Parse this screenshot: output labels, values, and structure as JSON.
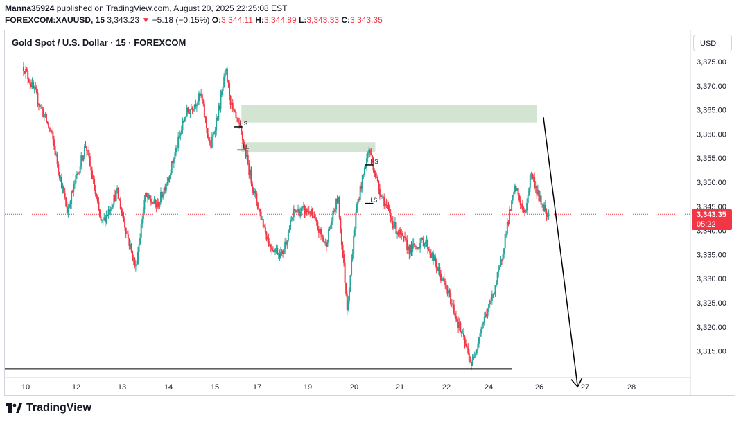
{
  "header": {
    "publisher": "Manna35924",
    "published_text": "published on TradingView.com, August 20, 2025 22:25:08 EST",
    "symbol": "FOREXCOM:XAUUSD, 15",
    "last": "3,343.23",
    "arrow": "▼",
    "change": "−5.18 (−0.15%)",
    "o_label": "O:",
    "o_value": "3,344.11",
    "h_label": "H:",
    "h_value": "3,344.89",
    "l_label": "L:",
    "l_value": "3,343.33",
    "c_label": "C:",
    "c_value": "3,343.35"
  },
  "legend": "Gold Spot / U.S. Dollar · 15 · FOREXCOM",
  "currency_button": "USD",
  "price_tag": {
    "price": "3,343.35",
    "countdown": "05:22"
  },
  "footer": {
    "logo_text": "TradingView"
  },
  "colors": {
    "up": "#26a69a",
    "down": "#f23645",
    "zone": "#c5dbc3",
    "line": "#000000"
  },
  "chart_data": {
    "type": "candlestick",
    "y_ticks": [
      "3,375.00",
      "3,370.00",
      "3,365.00",
      "3,360.00",
      "3,355.00",
      "3,350.00",
      "3,345.00",
      "3,340.00",
      "3,335.00",
      "3,330.00",
      "3,325.00",
      "3,320.00",
      "3,315.00"
    ],
    "x_ticks": [
      "10",
      "12",
      "13",
      "14",
      "15",
      "17",
      "19",
      "20",
      "21",
      "22",
      "24",
      "26",
      "27",
      "28"
    ],
    "ylim": [
      3310,
      3378
    ],
    "current_price": 3343.35,
    "path": [
      {
        "x": 0.6,
        "y": 3374
      },
      {
        "x": 1.0,
        "y": 3368
      },
      {
        "x": 1.5,
        "y": 3360
      },
      {
        "x": 2.0,
        "y": 3344
      },
      {
        "x": 2.6,
        "y": 3358
      },
      {
        "x": 3.1,
        "y": 3341
      },
      {
        "x": 3.6,
        "y": 3348
      },
      {
        "x": 4.2,
        "y": 3332
      },
      {
        "x": 4.5,
        "y": 3347
      },
      {
        "x": 4.9,
        "y": 3345
      },
      {
        "x": 5.3,
        "y": 3352
      },
      {
        "x": 5.8,
        "y": 3364
      },
      {
        "x": 6.3,
        "y": 3368
      },
      {
        "x": 6.6,
        "y": 3357
      },
      {
        "x": 6.9,
        "y": 3366
      },
      {
        "x": 7.1,
        "y": 3373
      },
      {
        "x": 7.3,
        "y": 3365
      },
      {
        "x": 7.6,
        "y": 3360
      },
      {
        "x": 8.0,
        "y": 3348
      },
      {
        "x": 8.5,
        "y": 3337
      },
      {
        "x": 8.9,
        "y": 3335
      },
      {
        "x": 9.3,
        "y": 3344
      },
      {
        "x": 9.8,
        "y": 3344
      },
      {
        "x": 10.3,
        "y": 3337
      },
      {
        "x": 10.7,
        "y": 3347
      },
      {
        "x": 11.0,
        "y": 3324
      },
      {
        "x": 11.3,
        "y": 3345
      },
      {
        "x": 11.7,
        "y": 3357
      },
      {
        "x": 12.0,
        "y": 3349
      },
      {
        "x": 12.5,
        "y": 3341
      },
      {
        "x": 13.0,
        "y": 3336
      },
      {
        "x": 13.5,
        "y": 3338
      },
      {
        "x": 13.9,
        "y": 3332
      },
      {
        "x": 14.3,
        "y": 3326
      },
      {
        "x": 14.7,
        "y": 3318
      },
      {
        "x": 15.0,
        "y": 3312
      },
      {
        "x": 15.3,
        "y": 3320
      },
      {
        "x": 15.6,
        "y": 3325
      },
      {
        "x": 15.9,
        "y": 3332
      },
      {
        "x": 16.1,
        "y": 3340
      },
      {
        "x": 16.4,
        "y": 3349
      },
      {
        "x": 16.7,
        "y": 3343
      },
      {
        "x": 16.9,
        "y": 3352
      },
      {
        "x": 17.2,
        "y": 3346
      },
      {
        "x": 17.5,
        "y": 3343
      }
    ],
    "zones": [
      {
        "x0": 7.6,
        "x1": 17.1,
        "y_top": 3366.0,
        "y_bottom": 3362.4
      },
      {
        "x0": 7.6,
        "x1": 11.9,
        "y_top": 3358.3,
        "y_bottom": 3356.2
      }
    ],
    "horizontal_line": {
      "x0": 0,
      "x1": 16.3,
      "y": 3311.3
    },
    "arrow": {
      "from": {
        "x": 17.3,
        "y": 3363.5
      },
      "to": {
        "x": 18.4,
        "y": 3307.6
      }
    },
    "annotations": [
      {
        "text": "HS",
        "x": 7.5,
        "y": 3361.5
      },
      {
        "text": "LL",
        "x": 7.6,
        "y": 3356.7
      },
      {
        "text": "HS",
        "x": 11.7,
        "y": 3353.6
      },
      {
        "text": "LS",
        "x": 11.7,
        "y": 3345.6
      }
    ]
  }
}
